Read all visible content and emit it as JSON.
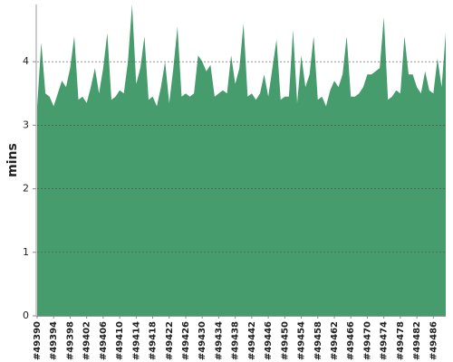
{
  "chart_data": {
    "type": "area",
    "y_label": "mins",
    "color": "#469c6c",
    "grid": true,
    "ylim": [
      0,
      4.9
    ],
    "yticks": [
      0,
      1,
      2,
      3,
      4
    ],
    "categories": [
      "#49390",
      null,
      null,
      null,
      "#49394",
      null,
      null,
      null,
      "#49398",
      null,
      null,
      null,
      "#49402",
      null,
      null,
      null,
      "#49406",
      null,
      null,
      null,
      "#49410",
      null,
      null,
      null,
      "#49414",
      null,
      null,
      null,
      "#49418",
      null,
      null,
      null,
      "#49422",
      null,
      null,
      null,
      "#49426",
      null,
      null,
      null,
      "#49430",
      null,
      null,
      null,
      "#49434",
      null,
      null,
      null,
      "#49438",
      null,
      null,
      null,
      "#49442",
      null,
      null,
      null,
      "#49446",
      null,
      null,
      null,
      "#49450",
      null,
      null,
      null,
      "#49454",
      null,
      null,
      null,
      "#49458",
      null,
      null,
      null,
      "#49462",
      null,
      null,
      null,
      "#49466",
      null,
      null,
      null,
      "#49470",
      null,
      null,
      null,
      "#49474",
      null,
      null,
      null,
      "#49478",
      null,
      null,
      null,
      "#49482",
      null,
      null,
      null,
      "#49486",
      null,
      null,
      null
    ],
    "values": [
      3.3,
      4.3,
      3.5,
      3.45,
      3.3,
      3.5,
      3.7,
      3.6,
      3.9,
      4.4,
      3.4,
      3.45,
      3.35,
      3.6,
      3.9,
      3.5,
      3.9,
      4.45,
      3.4,
      3.45,
      3.55,
      3.5,
      4.0,
      4.9,
      3.65,
      3.9,
      4.4,
      3.4,
      3.45,
      3.3,
      3.6,
      4.0,
      3.35,
      3.9,
      4.55,
      3.45,
      3.5,
      3.45,
      3.5,
      4.1,
      4.0,
      3.85,
      3.95,
      3.45,
      3.5,
      3.55,
      3.5,
      4.1,
      3.65,
      3.9,
      4.6,
      3.45,
      3.5,
      3.4,
      3.5,
      3.8,
      3.45,
      3.9,
      4.35,
      3.4,
      3.45,
      3.45,
      4.5,
      3.35,
      4.1,
      3.6,
      3.8,
      4.4,
      3.4,
      3.45,
      3.3,
      3.55,
      3.7,
      3.6,
      3.8,
      4.4,
      3.45,
      3.45,
      3.5,
      3.6,
      3.8,
      3.8,
      3.85,
      3.9,
      4.7,
      3.4,
      3.45,
      3.55,
      3.5,
      4.4,
      3.8,
      3.8,
      3.6,
      3.5,
      3.85,
      3.55,
      3.5,
      4.05,
      3.6,
      4.45
    ]
  }
}
